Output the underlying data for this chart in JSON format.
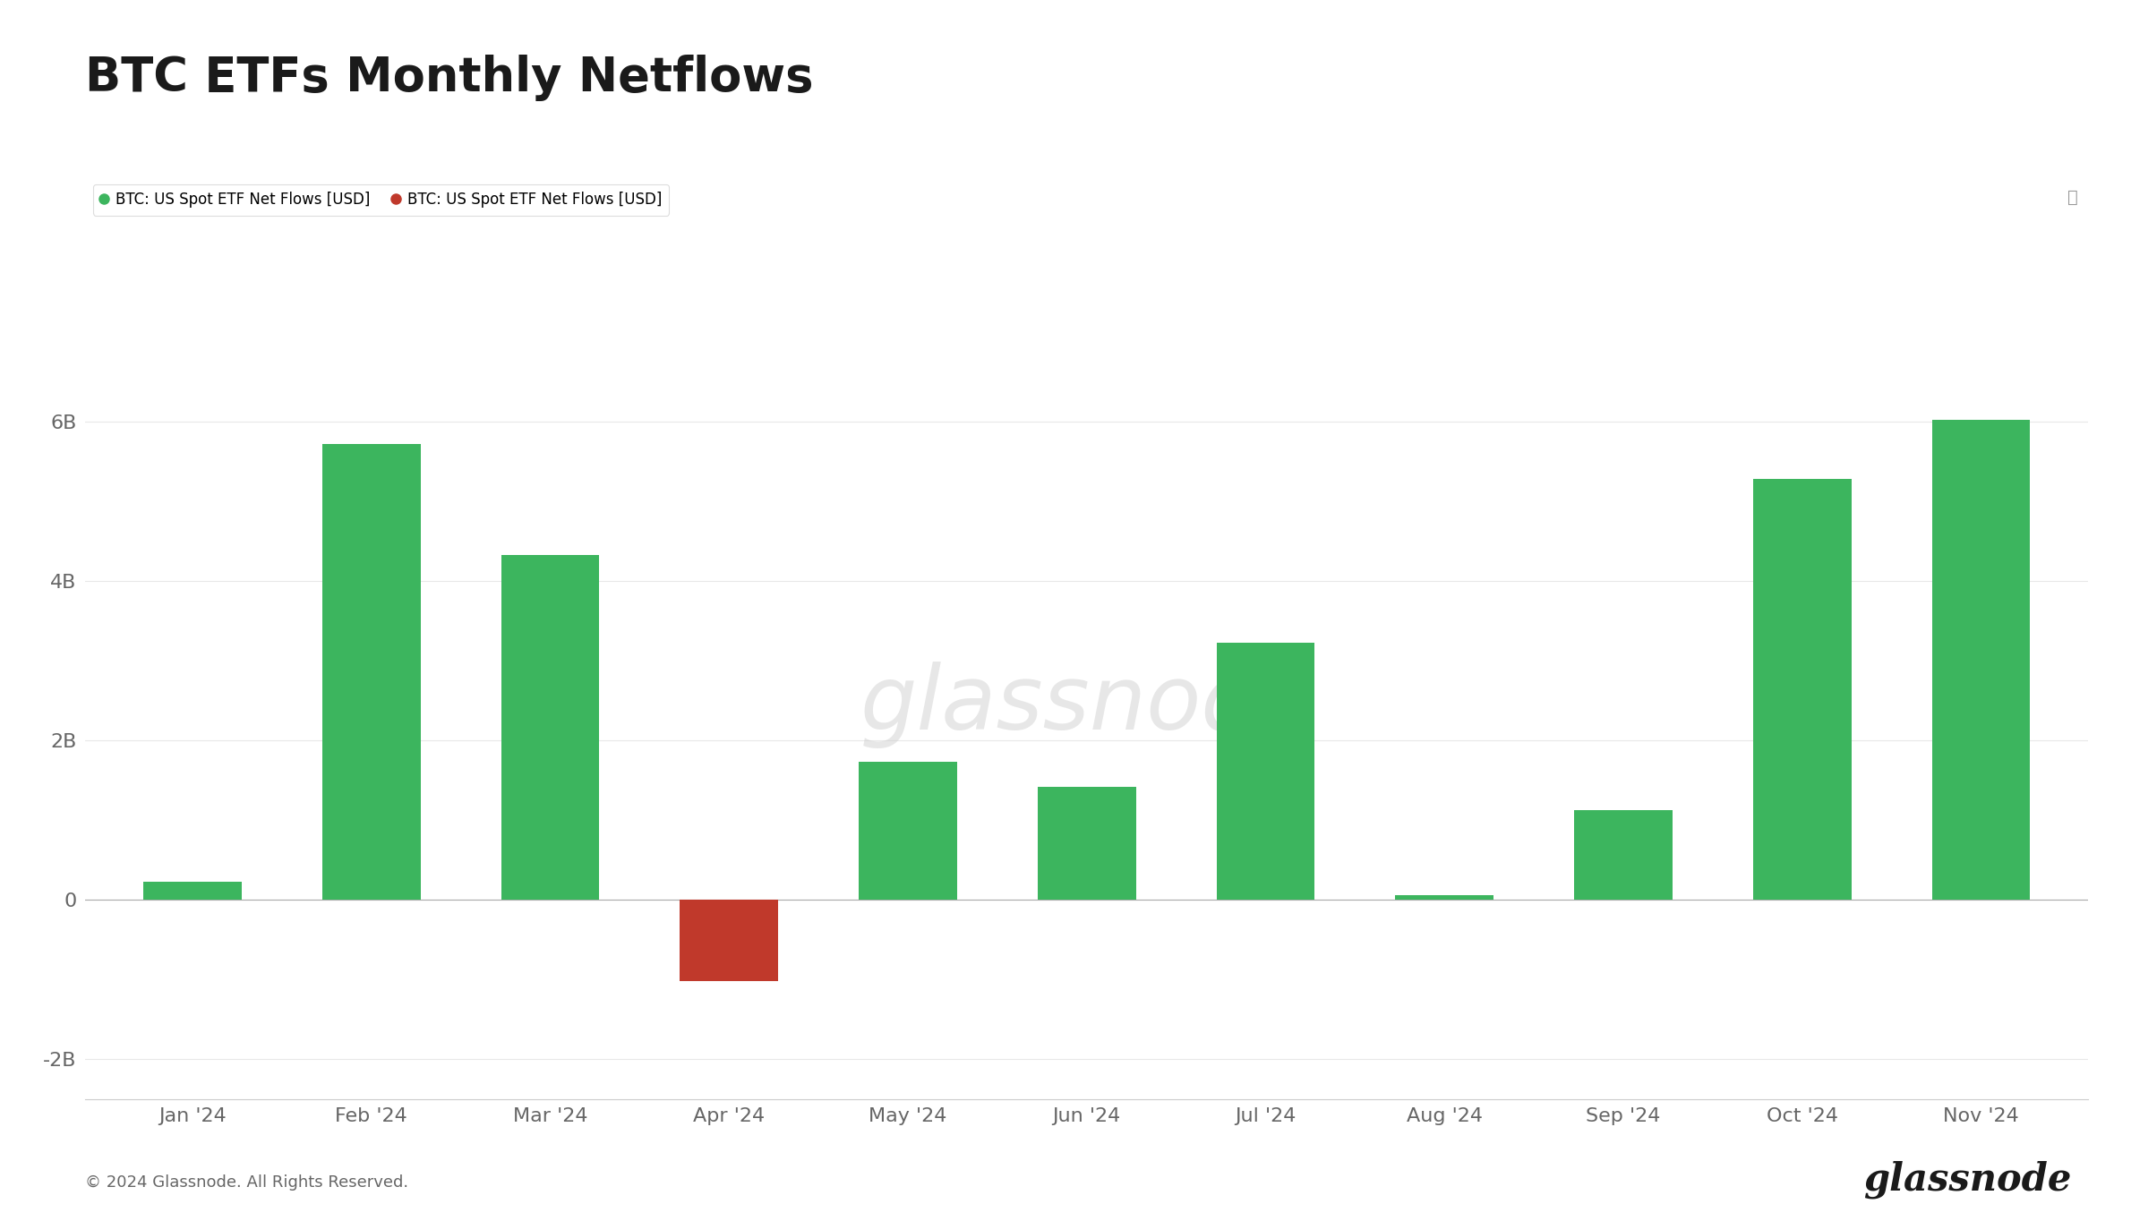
{
  "title": "BTC ETFs Monthly Netflows",
  "categories": [
    "Jan '24",
    "Feb '24",
    "Mar '24",
    "Apr '24",
    "May '24",
    "Jun '24",
    "Jul '24",
    "Aug '24",
    "Sep '24",
    "Oct '24",
    "Nov '24"
  ],
  "values": [
    0.22,
    5.72,
    4.32,
    -1.02,
    1.73,
    1.42,
    3.22,
    0.06,
    1.12,
    5.28,
    6.02
  ],
  "bar_colors": [
    "#3cb55e",
    "#3cb55e",
    "#3cb55e",
    "#c0392b",
    "#3cb55e",
    "#3cb55e",
    "#3cb55e",
    "#3cb55e",
    "#3cb55e",
    "#3cb55e",
    "#3cb55e"
  ],
  "ylim": [
    -2.5,
    7.0
  ],
  "yticks": [
    -2,
    0,
    2,
    4,
    6
  ],
  "ytick_labels": [
    "-2B",
    "0",
    "2B",
    "4B",
    "6B"
  ],
  "background_color": "#ffffff",
  "plot_bg_color": "#ffffff",
  "grid_color": "#e8e8e8",
  "title_fontsize": 38,
  "legend_label_green": "BTC: US Spot ETF Net Flows [USD]",
  "legend_label_red": "BTC: US Spot ETF Net Flows [USD]",
  "watermark": "glassnode",
  "footer_text": "© 2024 Glassnode. All Rights Reserved.",
  "footer_brand": "glassnode",
  "axis_label_color": "#666666",
  "tick_label_fontsize": 16,
  "bar_width": 0.55
}
